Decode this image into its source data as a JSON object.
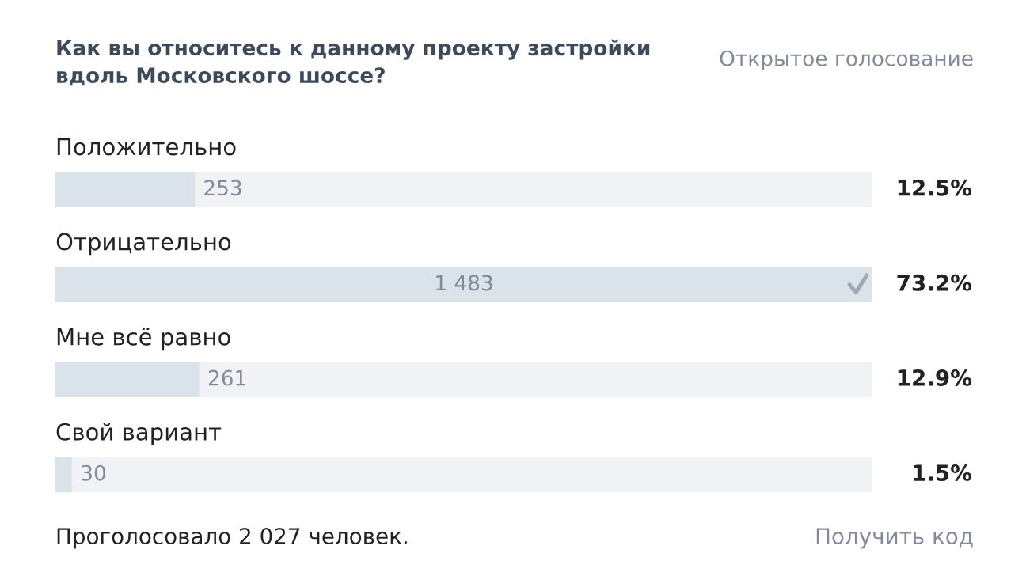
{
  "chart_data": {
    "type": "bar",
    "orientation": "horizontal",
    "title": "Как вы относитесь к данному проекту застройки\nвдоль Московского шоссе?",
    "subtitle": "Открытое голосование",
    "categories": [
      "Положительно",
      "Отрицательно",
      "Мне всё равно",
      "Свой вариант"
    ],
    "values": [
      253,
      1483,
      261,
      30
    ],
    "value_labels": [
      "253",
      "1 483",
      "261",
      "30"
    ],
    "color": "#dae2ea",
    "tick_labels": false,
    "annotations": [
      "12.5%",
      "73.2%",
      "12.9%",
      "1.5%",
      "Проголосовало 2 027 человек.",
      "Получить код"
    ]
  }
}
